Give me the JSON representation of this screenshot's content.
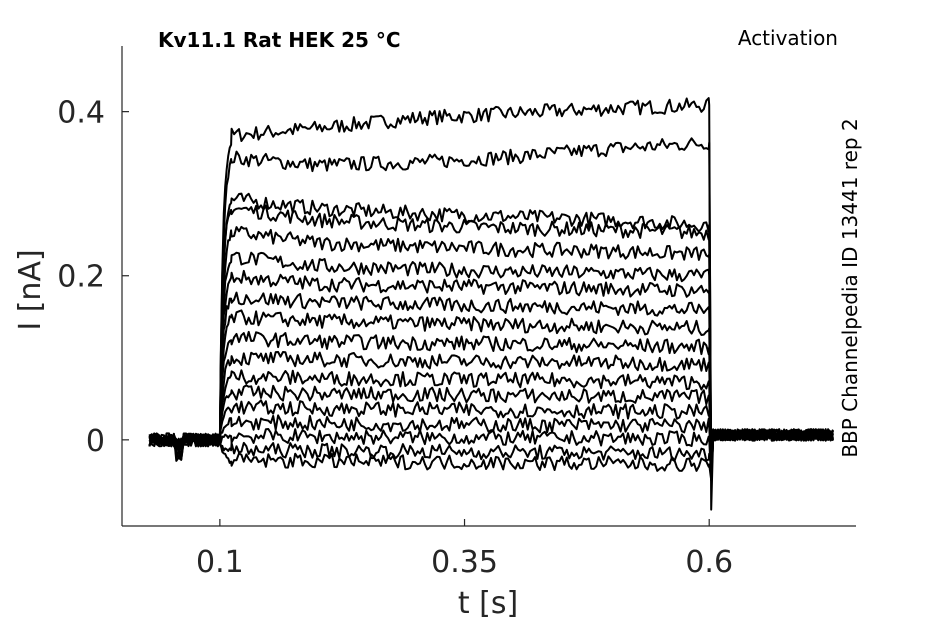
{
  "chart_data": {
    "type": "line",
    "title": "Kv11.1  Rat  HEK  25 °C",
    "protocol": "Activation",
    "side_label": "BBP Channelpedia ID 13441 rep 2",
    "xlabel": "t [s]",
    "ylabel": "I [nA]",
    "xlim": [
      0.0,
      0.75
    ],
    "ylim": [
      -0.105,
      0.48
    ],
    "xticks": [
      0.1,
      0.35,
      0.6
    ],
    "xtick_labels": [
      "0.1",
      "0.35",
      "0.6"
    ],
    "yticks": [
      0,
      0.2,
      0.4
    ],
    "ytick_labels": [
      "0",
      "0.2",
      "0.4"
    ],
    "grid": false,
    "line_color": "#000000",
    "pulse": {
      "start": 0.1,
      "end": 0.6,
      "baseline_start": 0.028,
      "trace_end": 0.728
    },
    "series": [
      {
        "levels": [
          0.37,
          0.38,
          0.392,
          0.398,
          0.404,
          0.408
        ]
      },
      {
        "levels": [
          0.345,
          0.335,
          0.338,
          0.345,
          0.355,
          0.362
        ]
      },
      {
        "levels": [
          0.295,
          0.282,
          0.276,
          0.272,
          0.268,
          0.262
        ]
      },
      {
        "levels": [
          0.285,
          0.268,
          0.262,
          0.258,
          0.256,
          0.252
        ]
      },
      {
        "levels": [
          0.255,
          0.24,
          0.236,
          0.232,
          0.23,
          0.226
        ]
      },
      {
        "levels": [
          0.225,
          0.212,
          0.208,
          0.205,
          0.203,
          0.2
        ]
      },
      {
        "levels": [
          0.2,
          0.19,
          0.188,
          0.186,
          0.184,
          0.182
        ]
      },
      {
        "levels": [
          0.175,
          0.168,
          0.165,
          0.163,
          0.161,
          0.158
        ]
      },
      {
        "levels": [
          0.15,
          0.145,
          0.142,
          0.14,
          0.138,
          0.136
        ]
      },
      {
        "levels": [
          0.125,
          0.12,
          0.118,
          0.117,
          0.115,
          0.113
        ]
      },
      {
        "levels": [
          0.1,
          0.098,
          0.096,
          0.095,
          0.094,
          0.092
        ]
      },
      {
        "levels": [
          0.078,
          0.075,
          0.074,
          0.073,
          0.072,
          0.07
        ]
      },
      {
        "levels": [
          0.058,
          0.056,
          0.055,
          0.054,
          0.053,
          0.052
        ]
      },
      {
        "levels": [
          0.04,
          0.038,
          0.037,
          0.036,
          0.035,
          0.034
        ]
      },
      {
        "levels": [
          0.022,
          0.02,
          0.019,
          0.018,
          0.018,
          0.017
        ]
      },
      {
        "levels": [
          0.005,
          0.004,
          0.003,
          0.002,
          0.002,
          0.001
        ]
      },
      {
        "levels": [
          -0.012,
          -0.013,
          -0.014,
          -0.015,
          -0.016,
          -0.017
        ]
      },
      {
        "levels": [
          -0.025,
          -0.026,
          -0.027,
          -0.028,
          -0.029,
          -0.03
        ]
      }
    ]
  }
}
